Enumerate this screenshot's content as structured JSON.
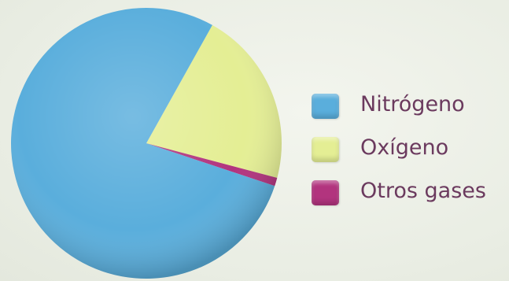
{
  "chart_data": {
    "type": "pie",
    "title": "",
    "slices": [
      {
        "label": "Nitrógeno",
        "value": 78,
        "color": "#5aaedc"
      },
      {
        "label": "Oxígeno",
        "value": 21,
        "color": "#e4ee94"
      },
      {
        "label": "Otros gases",
        "value": 1,
        "color": "#b2347e"
      }
    ],
    "legend_position": "right"
  }
}
